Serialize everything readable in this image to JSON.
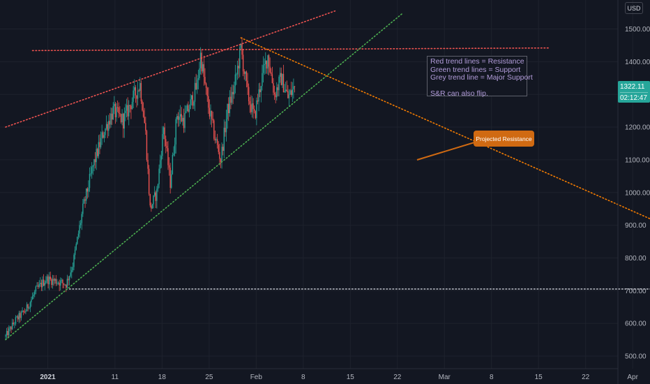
{
  "chart_data": {
    "type": "candlestick",
    "currency": "USD",
    "x_axis_labels": [
      "2021",
      "11",
      "18",
      "25",
      "Feb",
      "8",
      "15",
      "22",
      "Mar",
      "8",
      "15",
      "22",
      "Apr"
    ],
    "y_axis_ticks": [
      500,
      600,
      700,
      800,
      900,
      1000,
      1100,
      1200,
      1300,
      1400,
      1500
    ],
    "ylim": [
      470,
      1560
    ],
    "last_price": "1322.11",
    "countdown": "02:12:47",
    "up_color": "#26a69a",
    "down_color": "#ef5350",
    "price_path": [
      [
        0,
        560
      ],
      [
        1.5,
        610
      ],
      [
        3,
        640
      ],
      [
        4.5,
        700
      ],
      [
        6,
        735
      ],
      [
        7.5,
        730
      ],
      [
        9,
        720
      ],
      [
        10,
        780
      ],
      [
        11.5,
        950
      ],
      [
        13,
        1080
      ],
      [
        14.5,
        1180
      ],
      [
        16,
        1250
      ],
      [
        17.5,
        1220
      ],
      [
        19,
        1290
      ],
      [
        20,
        1330
      ],
      [
        20.8,
        1190
      ],
      [
        21.5,
        950
      ],
      [
        22.5,
        1000
      ],
      [
        23.5,
        1200
      ],
      [
        24.5,
        1030
      ],
      [
        25.5,
        1240
      ],
      [
        26.5,
        1220
      ],
      [
        27.5,
        1270
      ],
      [
        28.5,
        1330
      ],
      [
        29,
        1420
      ],
      [
        30,
        1280
      ],
      [
        31,
        1180
      ],
      [
        32,
        1100
      ],
      [
        33,
        1250
      ],
      [
        34,
        1320
      ],
      [
        35,
        1440
      ],
      [
        36,
        1300
      ],
      [
        37,
        1230
      ],
      [
        38,
        1340
      ],
      [
        39,
        1420
      ],
      [
        40,
        1300
      ],
      [
        41,
        1350
      ],
      [
        42,
        1290
      ],
      [
        43,
        1322.11
      ]
    ],
    "trend_lines": [
      {
        "role": "resistance",
        "color": "#ef5350",
        "points": [
          [
            0,
            1200
          ],
          [
            49,
            1555
          ]
        ]
      },
      {
        "role": "resistance",
        "color": "#ef5350",
        "points": [
          [
            4,
            1434
          ],
          [
            81,
            1442
          ]
        ]
      },
      {
        "role": "support",
        "color": "#4caf50",
        "points": [
          [
            0,
            550
          ],
          [
            59,
            1547
          ]
        ]
      },
      {
        "role": "major-support",
        "color": "#b2b5be",
        "points": [
          [
            9.5,
            705
          ],
          [
            113,
            705
          ]
        ]
      },
      {
        "role": "projected-resistance",
        "color": "#f57c00",
        "points": [
          [
            35,
            1473
          ],
          [
            112,
            773
          ]
        ]
      }
    ]
  },
  "annotations": {
    "legend_lines": [
      "Red trend lines = Resistance",
      "Green trend lines = Support",
      "Grey trend line = Major Support",
      "S&R can also flip."
    ],
    "callout": "Projected Resistance"
  }
}
